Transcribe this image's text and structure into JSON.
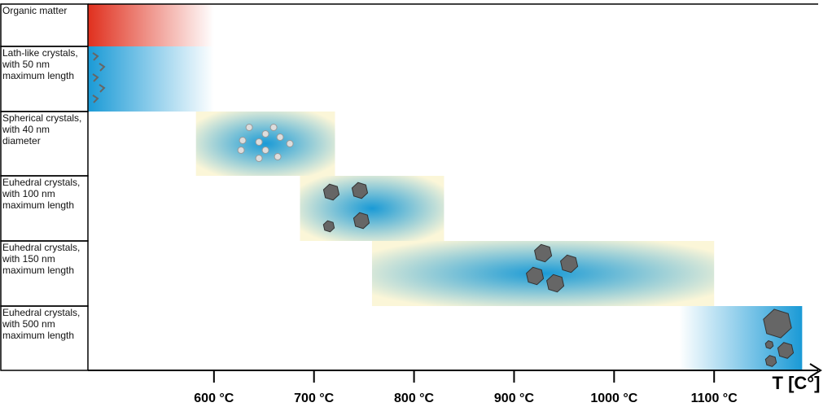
{
  "chart_data": {
    "type": "range",
    "categories": [
      "Organic matter",
      "Lath-like crystals, with 50 nm maximum length",
      "Spherical crystals, with 40 nm diameter",
      "Euhedral crystals, with 100 nm maximum length",
      "Euhedral crystals, with 150 nm maximum length",
      "Euhedral crystals, with 500 nm maximum length"
    ],
    "start": [
      474,
      474,
      582,
      686,
      758,
      1065
    ],
    "end": [
      600,
      600,
      721,
      830,
      1100,
      1188
    ],
    "colors": [
      "#e0301e",
      "#1a9ad6",
      "#1a9ad6",
      "#1a9ad6",
      "#1a9ad6",
      "#1a9ad6"
    ],
    "xlim": [
      474,
      1204
    ],
    "xticks": [
      {
        "value": 600,
        "label": "600 °C"
      },
      {
        "value": 700,
        "label": "700 °C"
      },
      {
        "value": 800,
        "label": "800 °C"
      },
      {
        "value": 900,
        "label": "900 °C"
      },
      {
        "value": 1000,
        "label": "1000 °C"
      },
      {
        "value": 1100,
        "label": "1100 °C"
      }
    ],
    "xlabel": "T [C°]"
  }
}
